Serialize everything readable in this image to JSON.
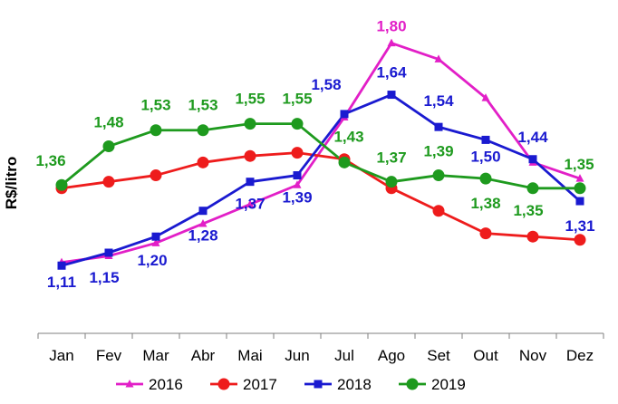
{
  "chart_data": {
    "type": "line",
    "title": "",
    "xlabel": "",
    "ylabel": "R$/litro",
    "categories": [
      "Jan",
      "Fev",
      "Mar",
      "Abr",
      "Mai",
      "Jun",
      "Jul",
      "Ago",
      "Set",
      "Out",
      "Nov",
      "Dez"
    ],
    "ylim": [
      0.9,
      1.9
    ],
    "grid": false,
    "legend_position": "bottom",
    "series": [
      {
        "name": "2016",
        "color": "#e21fc7",
        "marker": "triangle",
        "values": [
          1.12,
          1.14,
          1.18,
          1.24,
          1.3,
          1.36,
          1.57,
          1.8,
          1.75,
          1.63,
          1.43,
          1.38
        ],
        "labels": [
          "",
          "",
          "",
          "",
          "",
          "",
          "",
          "1,80",
          "",
          "",
          "",
          ""
        ]
      },
      {
        "name": "2017",
        "color": "#ee1c1c",
        "marker": "circle",
        "values": [
          1.35,
          1.37,
          1.39,
          1.43,
          1.45,
          1.46,
          1.44,
          1.35,
          1.28,
          1.21,
          1.2,
          1.19
        ],
        "labels": [
          "",
          "",
          "",
          "",
          "",
          "",
          "",
          "",
          "",
          "",
          "",
          ""
        ]
      },
      {
        "name": "2018",
        "color": "#1a1ad0",
        "marker": "square",
        "values": [
          1.11,
          1.15,
          1.2,
          1.28,
          1.37,
          1.39,
          1.58,
          1.64,
          1.54,
          1.5,
          1.44,
          1.31
        ],
        "labels": [
          "1,11",
          "1,15",
          "1,20",
          "1,28",
          "1,37",
          "1,39",
          "1,58",
          "1,64",
          "1,54",
          "1,50",
          "1,44",
          "1,31"
        ]
      },
      {
        "name": "2019",
        "color": "#1e9a1e",
        "marker": "circle",
        "values": [
          1.36,
          1.48,
          1.53,
          1.53,
          1.55,
          1.55,
          1.43,
          1.37,
          1.39,
          1.38,
          1.35,
          1.35
        ],
        "labels": [
          "1,36",
          "1,48",
          "1,53",
          "1,53",
          "1,55",
          "1,55",
          "1,43",
          "1,37",
          "1,39",
          "1,38",
          "1,35",
          "1,35"
        ]
      }
    ]
  }
}
